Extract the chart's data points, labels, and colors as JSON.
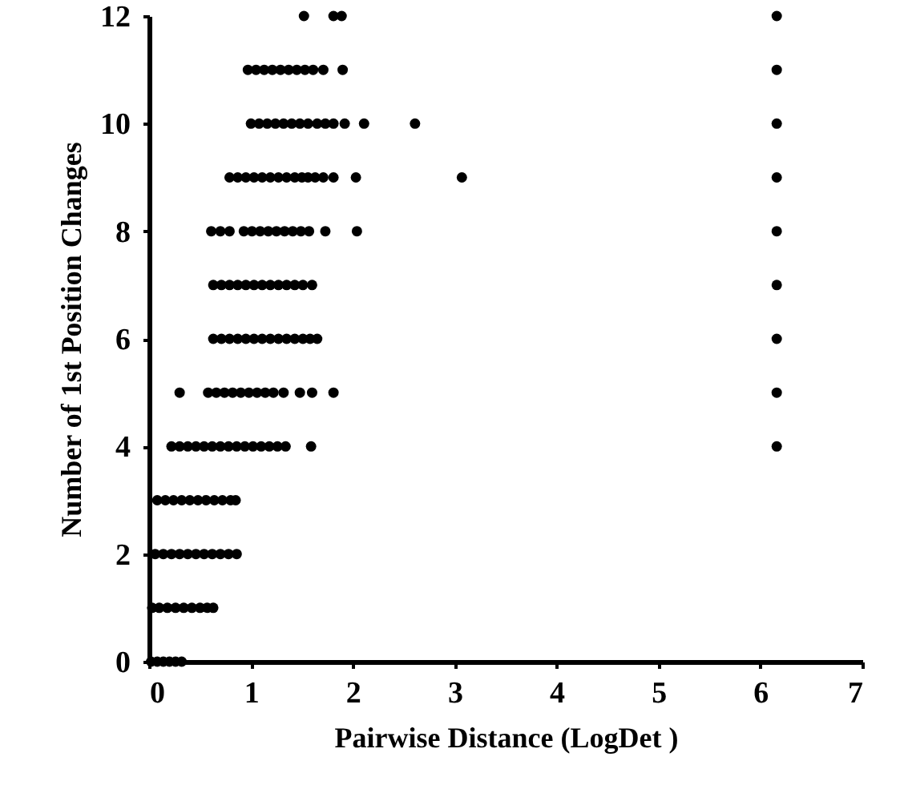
{
  "chart_data": {
    "type": "scatter",
    "xlabel": "Pairwise  Distance (LogDet   )",
    "ylabel": "Number of 1st Position Changes",
    "xlim": [
      0,
      7
    ],
    "ylim": [
      0,
      12
    ],
    "xticks": [
      0,
      1,
      2,
      3,
      4,
      5,
      6,
      7
    ],
    "yticks": [
      0,
      2,
      4,
      6,
      8,
      10,
      12
    ],
    "marker": "circle",
    "series": [
      {
        "color": "#000000",
        "x": [
          0.02,
          0.08,
          0.14,
          0.2,
          0.26,
          0.32,
          0.03,
          0.1,
          0.18,
          0.26,
          0.34,
          0.42,
          0.5,
          0.57,
          0.63,
          0.06,
          0.14,
          0.22,
          0.3,
          0.38,
          0.46,
          0.54,
          0.62,
          0.7,
          0.78,
          0.86,
          0.08,
          0.16,
          0.24,
          0.32,
          0.4,
          0.48,
          0.56,
          0.64,
          0.72,
          0.8,
          0.85,
          0.22,
          0.3,
          0.38,
          0.46,
          0.54,
          0.62,
          0.7,
          0.78,
          0.86,
          0.94,
          1.02,
          1.1,
          1.18,
          1.26,
          1.34,
          1.59,
          0.3,
          0.58,
          0.66,
          0.74,
          0.82,
          0.9,
          0.98,
          1.06,
          1.14,
          1.22,
          1.32,
          1.48,
          1.6,
          1.81,
          0.63,
          0.71,
          0.79,
          0.87,
          0.95,
          1.03,
          1.11,
          1.19,
          1.27,
          1.35,
          1.43,
          1.51,
          1.58,
          1.65,
          0.63,
          0.71,
          0.79,
          0.87,
          0.95,
          1.03,
          1.11,
          1.19,
          1.27,
          1.35,
          1.43,
          1.51,
          1.6,
          0.61,
          0.7,
          0.79,
          0.93,
          1.01,
          1.09,
          1.17,
          1.25,
          1.33,
          1.41,
          1.49,
          1.57,
          1.73,
          2.04,
          0.79,
          0.87,
          0.95,
          1.03,
          1.11,
          1.19,
          1.27,
          1.35,
          1.43,
          1.5,
          1.56,
          1.63,
          1.71,
          1.81,
          2.03,
          3.07,
          1.0,
          1.08,
          1.16,
          1.24,
          1.32,
          1.4,
          1.48,
          1.56,
          1.65,
          1.73,
          1.81,
          1.92,
          2.11,
          2.61,
          0.97,
          1.05,
          1.13,
          1.21,
          1.29,
          1.37,
          1.45,
          1.53,
          1.61,
          1.71,
          1.9,
          1.52,
          1.81,
          1.89,
          6.16,
          6.16,
          6.16,
          6.16,
          6.16,
          6.16,
          6.16,
          6.16,
          6.16
        ],
        "values": [
          0,
          0,
          0,
          0,
          0,
          0,
          1,
          1,
          1,
          1,
          1,
          1,
          1,
          1,
          1,
          2,
          2,
          2,
          2,
          2,
          2,
          2,
          2,
          2,
          2,
          2,
          3,
          3,
          3,
          3,
          3,
          3,
          3,
          3,
          3,
          3,
          3,
          4,
          4,
          4,
          4,
          4,
          4,
          4,
          4,
          4,
          4,
          4,
          4,
          4,
          4,
          4,
          4,
          5,
          5,
          5,
          5,
          5,
          5,
          5,
          5,
          5,
          5,
          5,
          5,
          5,
          5,
          6,
          6,
          6,
          6,
          6,
          6,
          6,
          6,
          6,
          6,
          6,
          6,
          6,
          6,
          7,
          7,
          7,
          7,
          7,
          7,
          7,
          7,
          7,
          7,
          7,
          7,
          7,
          8,
          8,
          8,
          8,
          8,
          8,
          8,
          8,
          8,
          8,
          8,
          8,
          8,
          8,
          9,
          9,
          9,
          9,
          9,
          9,
          9,
          9,
          9,
          9,
          9,
          9,
          9,
          9,
          9,
          9,
          10,
          10,
          10,
          10,
          10,
          10,
          10,
          10,
          10,
          10,
          10,
          10,
          10,
          10,
          11,
          11,
          11,
          11,
          11,
          11,
          11,
          11,
          11,
          11,
          11,
          12,
          12,
          12,
          4,
          5,
          6,
          7,
          8,
          9,
          10,
          11,
          12
        ]
      }
    ]
  }
}
